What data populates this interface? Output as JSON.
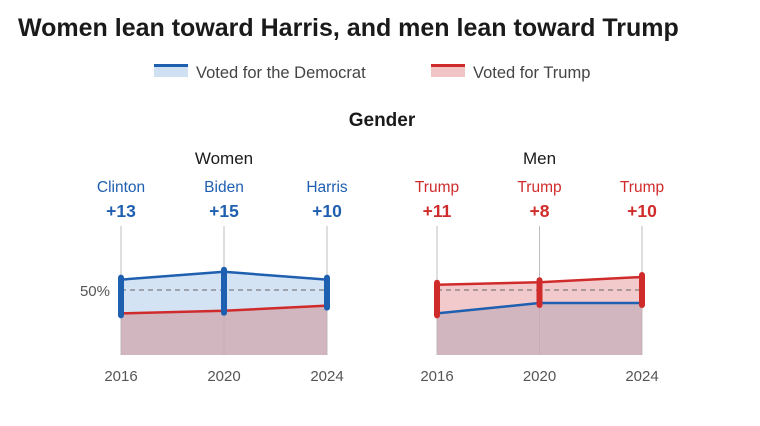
{
  "title": "Women lean toward Harris, and men lean toward Trump",
  "legend": [
    {
      "label": "Voted for the Democrat",
      "color": "#1f5fb0",
      "fill": "#cfe0f3"
    },
    {
      "label": "Voted for Trump",
      "color": "#d02b2b",
      "fill": "#f1c4c6"
    }
  ],
  "section_title": "Gender",
  "reference_label": "50%",
  "colors": {
    "democrat": "#1f5fb0",
    "trump": "#d02b2b",
    "overlap_fill": "#c9a9b5",
    "gridline": "#bdbdbd",
    "axis_text": "#555555"
  },
  "chart_data": [
    {
      "type": "area",
      "title": "Women",
      "x": [
        "2016",
        "2020",
        "2024"
      ],
      "ylim": [
        0,
        100
      ],
      "reference_line": 50,
      "winners": [
        {
          "candidate": "Clinton",
          "margin": "+13",
          "party": "democrat"
        },
        {
          "candidate": "Biden",
          "margin": "+15",
          "party": "democrat"
        },
        {
          "candidate": "Harris",
          "margin": "+10",
          "party": "democrat"
        }
      ],
      "series": [
        {
          "name": "Voted for the Democrat",
          "values": [
            54,
            57,
            54
          ]
        },
        {
          "name": "Voted for Trump",
          "values": [
            41,
            42,
            44
          ]
        }
      ]
    },
    {
      "type": "area",
      "title": "Men",
      "x": [
        "2016",
        "2020",
        "2024"
      ],
      "ylim": [
        0,
        100
      ],
      "reference_line": 50,
      "winners": [
        {
          "candidate": "Trump",
          "margin": "+11",
          "party": "trump"
        },
        {
          "candidate": "Trump",
          "margin": "+8",
          "party": "trump"
        },
        {
          "candidate": "Trump",
          "margin": "+10",
          "party": "trump"
        }
      ],
      "series": [
        {
          "name": "Voted for the Democrat",
          "values": [
            41,
            45,
            45
          ]
        },
        {
          "name": "Voted for Trump",
          "values": [
            52,
            53,
            55
          ]
        }
      ]
    }
  ]
}
